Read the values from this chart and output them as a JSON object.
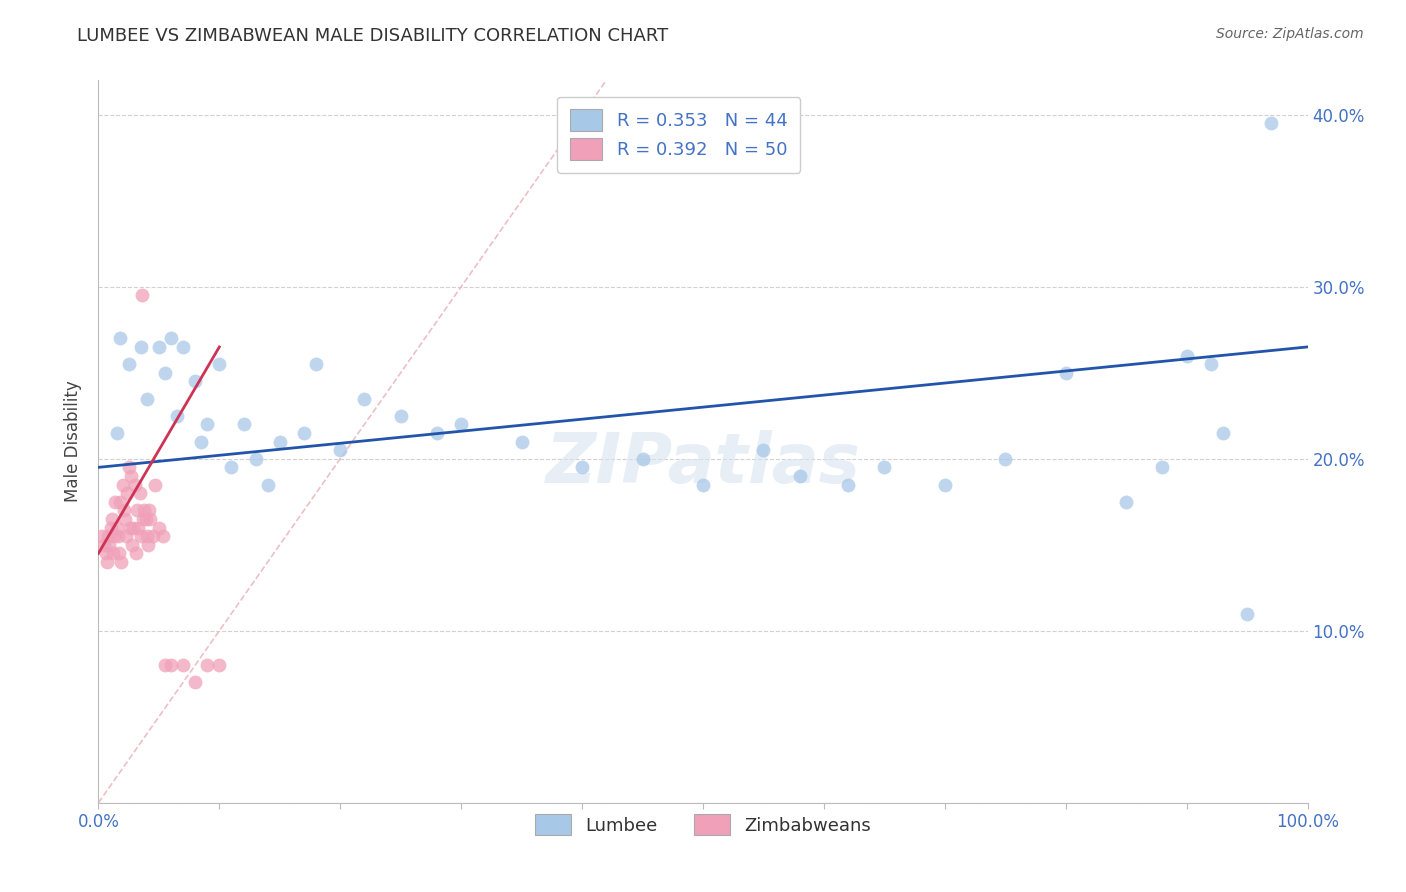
{
  "title": "LUMBEE VS ZIMBABWEAN MALE DISABILITY CORRELATION CHART",
  "source": "Source: ZipAtlas.com",
  "ylabel": "Male Disability",
  "xlim": [
    0,
    100
  ],
  "ylim": [
    0,
    42
  ],
  "lumbee_R": 0.353,
  "lumbee_N": 44,
  "zimb_R": 0.392,
  "zimb_N": 50,
  "lumbee_color": "#A8C8E8",
  "zimb_color": "#F0A0B8",
  "lumbee_line_color": "#2255AA",
  "zimb_line_color": "#CC3355",
  "ref_line_color": "#E8B0B8",
  "text_color": "#4472C4",
  "legend_text_color": "#333333",
  "background_color": "#FFFFFF",
  "watermark": "ZIPatlas",
  "lumbee_x": [
    1.5,
    1.8,
    2.5,
    3.5,
    4.0,
    5.0,
    5.5,
    6.0,
    6.5,
    7.0,
    8.0,
    8.5,
    9.0,
    10.0,
    11.0,
    12.0,
    13.0,
    14.0,
    15.0,
    17.0,
    18.0,
    20.0,
    22.0,
    25.0,
    28.0,
    30.0,
    35.0,
    40.0,
    45.0,
    50.0,
    55.0,
    58.0,
    62.0,
    65.0,
    70.0,
    75.0,
    80.0,
    85.0,
    88.0,
    90.0,
    92.0,
    93.0,
    95.0,
    97.0
  ],
  "lumbee_y": [
    21.5,
    27.0,
    25.5,
    26.5,
    23.5,
    26.5,
    25.0,
    27.0,
    22.5,
    26.5,
    24.5,
    21.0,
    22.0,
    25.5,
    19.5,
    22.0,
    20.0,
    18.5,
    21.0,
    21.5,
    25.5,
    20.5,
    23.5,
    22.5,
    21.5,
    22.0,
    21.0,
    19.5,
    20.0,
    18.5,
    20.5,
    19.0,
    18.5,
    19.5,
    18.5,
    20.0,
    25.0,
    17.5,
    19.5,
    26.0,
    25.5,
    21.5,
    11.0,
    39.5
  ],
  "zimb_x": [
    0.3,
    0.5,
    0.6,
    0.7,
    0.8,
    0.9,
    1.0,
    1.1,
    1.2,
    1.3,
    1.4,
    1.5,
    1.6,
    1.7,
    1.8,
    1.9,
    2.0,
    2.1,
    2.2,
    2.3,
    2.4,
    2.5,
    2.6,
    2.7,
    2.8,
    2.9,
    3.0,
    3.1,
    3.2,
    3.3,
    3.4,
    3.5,
    3.6,
    3.7,
    3.8,
    3.9,
    4.0,
    4.1,
    4.2,
    4.3,
    4.5,
    4.7,
    5.0,
    5.3,
    5.5,
    6.0,
    7.0,
    8.0,
    9.0,
    10.0
  ],
  "zimb_y": [
    15.5,
    15.0,
    14.5,
    14.0,
    15.5,
    15.0,
    16.0,
    16.5,
    14.5,
    15.5,
    17.5,
    16.0,
    15.5,
    14.5,
    17.5,
    14.0,
    18.5,
    17.0,
    16.5,
    15.5,
    18.0,
    19.5,
    16.0,
    19.0,
    15.0,
    16.0,
    18.5,
    14.5,
    17.0,
    16.0,
    18.0,
    15.5,
    29.5,
    16.5,
    17.0,
    16.5,
    15.5,
    15.0,
    17.0,
    16.5,
    15.5,
    18.5,
    16.0,
    15.5,
    8.0,
    8.0,
    8.0,
    7.0,
    8.0,
    8.0
  ],
  "lumbee_trend_x": [
    0,
    100
  ],
  "lumbee_trend_y": [
    19.5,
    26.5
  ],
  "zimb_trend_x": [
    0.0,
    10.0
  ],
  "zimb_trend_y": [
    14.5,
    26.5
  ],
  "ref_line_x": [
    0,
    42
  ],
  "ref_line_y": [
    0,
    42
  ]
}
